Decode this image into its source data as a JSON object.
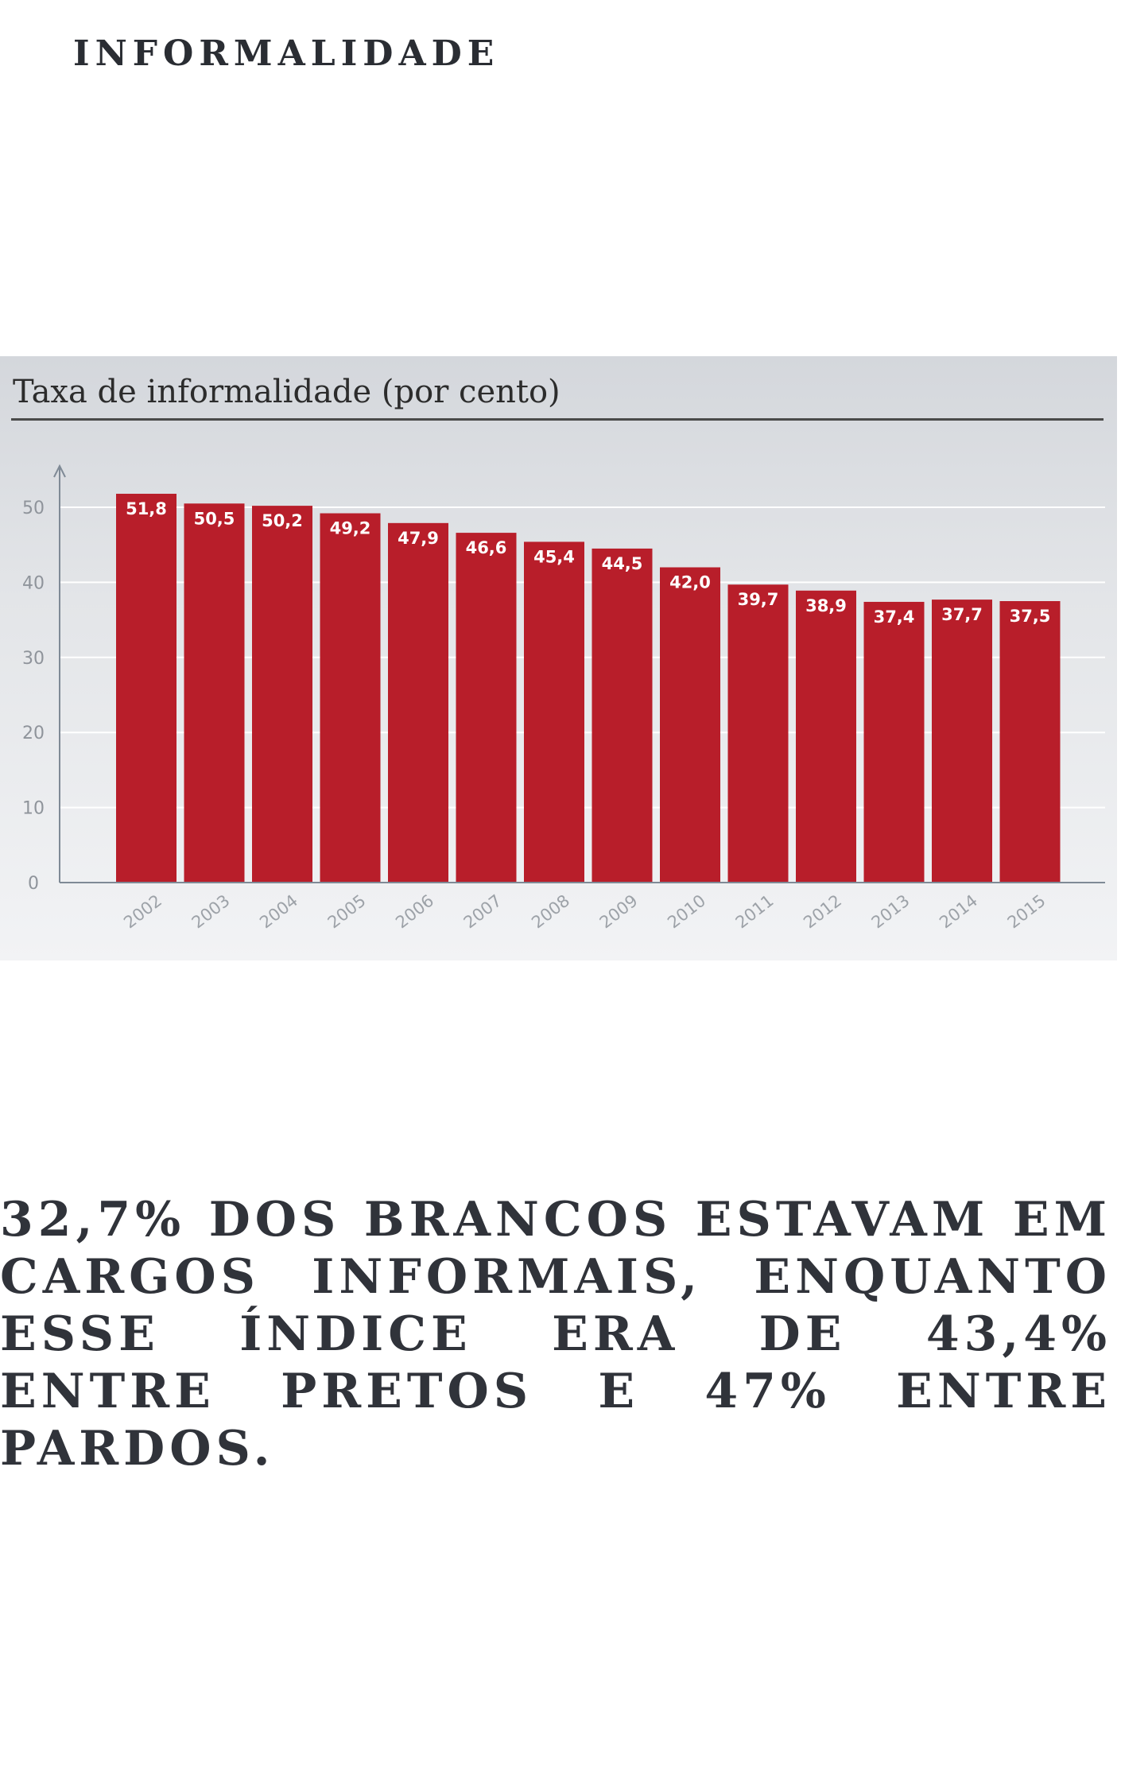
{
  "header": {
    "label": "INFORMALIDADE"
  },
  "chart_data": {
    "type": "bar",
    "title": "Taxa de informalidade (por cento)",
    "xlabel": "",
    "ylabel": "",
    "ylim": [
      0,
      55
    ],
    "yticks": [
      0,
      10,
      20,
      30,
      40,
      50
    ],
    "grid": true,
    "categories": [
      "2002",
      "2003",
      "2004",
      "2005",
      "2006",
      "2007",
      "2008",
      "2009",
      "2010",
      "2011",
      "2012",
      "2013",
      "2014",
      "2015"
    ],
    "values": [
      51.8,
      50.5,
      50.2,
      49.2,
      47.9,
      46.6,
      45.4,
      44.5,
      42.0,
      39.7,
      38.9,
      37.4,
      37.7,
      37.5
    ],
    "data_labels": [
      "51,8",
      "50,5",
      "50,2",
      "49,2",
      "47,9",
      "46,6",
      "45,4",
      "44,5",
      "42,0",
      "39,7",
      "38,9",
      "37,4",
      "37,7",
      "37,5"
    ],
    "bar_color": "#b81e2a"
  },
  "body": {
    "text": "32,7% DOS BRANCOS ESTAVAM EM CARGOS INFORMAIS, ENQUANTO ESSE ÍNDICE ERA DE 43,4% ENTRE PRETOS E 47% ENTRE PARDOS."
  }
}
